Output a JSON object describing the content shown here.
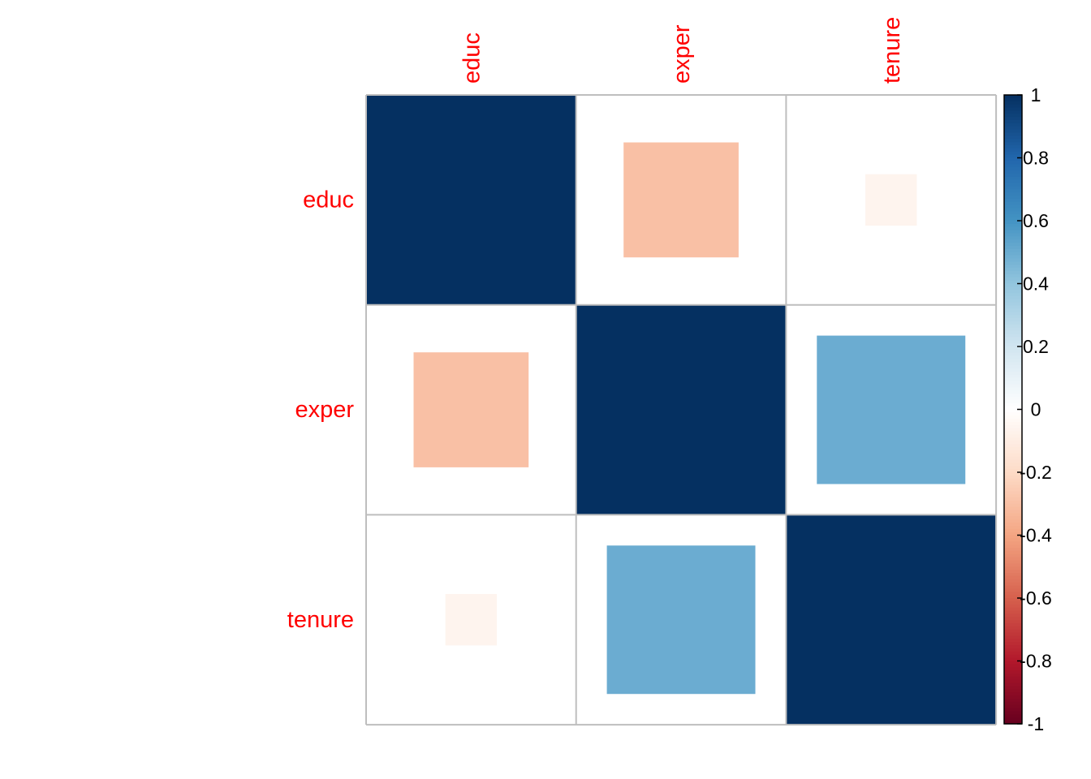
{
  "chart_data": {
    "type": "heatmap",
    "variables": [
      "educ",
      "exper",
      "tenure"
    ],
    "matrix": [
      [
        1.0,
        -0.3,
        -0.06
      ],
      [
        -0.3,
        1.0,
        0.5
      ],
      [
        -0.06,
        0.5,
        1.0
      ]
    ],
    "colorbar": {
      "ticks": [
        "1",
        "0.8",
        "0.6",
        "0.4",
        "0.2",
        "0",
        "-0.2",
        "-0.4",
        "-0.6",
        "-0.8",
        "-1"
      ],
      "range": [
        -1,
        1
      ]
    },
    "label_color": "#ff0000",
    "grid_color": "#bebebe"
  }
}
